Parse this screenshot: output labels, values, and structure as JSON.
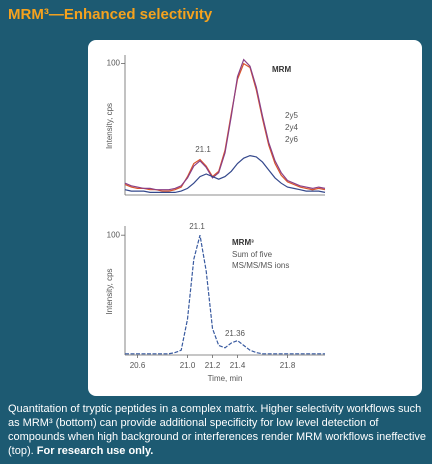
{
  "title": "MRM³—Enhanced selectivity",
  "caption": "Quantitation of tryptic peptides in a complex matrix. Higher selectivity workflows such as MRM³ (bottom) can provide additional specificity for low level detection of compounds when high background or interferences render MRM workflows ineffective (top).",
  "caption_note": "For research use only.",
  "chart_data": [
    {
      "type": "line",
      "ylabel": "Intensity, cps",
      "label": "MRM",
      "annotations": [
        "21.1"
      ],
      "xlim": [
        20.5,
        22.1
      ],
      "ylim": [
        0,
        105
      ],
      "yticks": [
        100
      ],
      "x": [
        20.5,
        20.55,
        20.6,
        20.65,
        20.7,
        20.75,
        20.8,
        20.85,
        20.9,
        20.95,
        21.0,
        21.05,
        21.1,
        21.15,
        21.2,
        21.25,
        21.3,
        21.35,
        21.4,
        21.45,
        21.5,
        21.55,
        21.6,
        21.65,
        21.7,
        21.75,
        21.8,
        21.85,
        21.9,
        21.95,
        22.0,
        22.05,
        22.1
      ],
      "series": [
        {
          "name": "2y5",
          "color": "#d9542b",
          "values": [
            8,
            6,
            5,
            5,
            4,
            4,
            3,
            3,
            4,
            6,
            14,
            24,
            27,
            22,
            14,
            18,
            34,
            62,
            88,
            100,
            97,
            80,
            58,
            38,
            24,
            15,
            10,
            8,
            6,
            5,
            4,
            5,
            4
          ]
        },
        {
          "name": "2y4",
          "color": "#8a3f86",
          "values": [
            9,
            7,
            6,
            5,
            5,
            4,
            4,
            4,
            5,
            7,
            13,
            22,
            26,
            21,
            13,
            17,
            32,
            60,
            90,
            103,
            98,
            82,
            60,
            40,
            26,
            17,
            11,
            9,
            7,
            6,
            5,
            6,
            5
          ]
        },
        {
          "name": "2y6",
          "color": "#34488c",
          "values": [
            4,
            3,
            3,
            3,
            2,
            2,
            2,
            2,
            2,
            3,
            5,
            9,
            14,
            16,
            14,
            12,
            14,
            18,
            24,
            28,
            30,
            29,
            25,
            19,
            13,
            9,
            6,
            5,
            4,
            3,
            3,
            3,
            2
          ]
        }
      ]
    },
    {
      "type": "line",
      "ylabel": "Intensity, cps",
      "xlabel": "Time, min",
      "label": "MRM³",
      "notes": [
        "Sum of five",
        "MS/MS/MS ions"
      ],
      "annotations": [
        "21.1",
        "21.36"
      ],
      "xlim": [
        20.5,
        22.1
      ],
      "ylim": [
        0,
        106
      ],
      "yticks": [
        100
      ],
      "xticks": [
        20.6,
        {
          "value": 21,
          "label": "21.0"
        },
        21.2,
        21.4,
        21.8
      ],
      "x": [
        20.5,
        20.55,
        20.6,
        20.65,
        20.7,
        20.75,
        20.8,
        20.85,
        20.9,
        20.95,
        21.0,
        21.05,
        21.1,
        21.15,
        21.2,
        21.25,
        21.3,
        21.35,
        21.4,
        21.45,
        21.5,
        21.55,
        21.6,
        21.65,
        21.7,
        21.75,
        21.8,
        21.85,
        21.9,
        21.95,
        22.0,
        22.05,
        22.1
      ],
      "series": [
        {
          "color": "#3a5ba0",
          "dashed": true,
          "values": [
            1,
            1,
            1,
            1,
            1,
            1,
            1,
            1,
            2,
            4,
            30,
            80,
            100,
            70,
            22,
            8,
            6,
            10,
            12,
            8,
            4,
            2,
            1,
            1,
            1,
            1,
            1,
            1,
            1,
            1,
            1,
            1,
            1
          ]
        }
      ]
    }
  ]
}
